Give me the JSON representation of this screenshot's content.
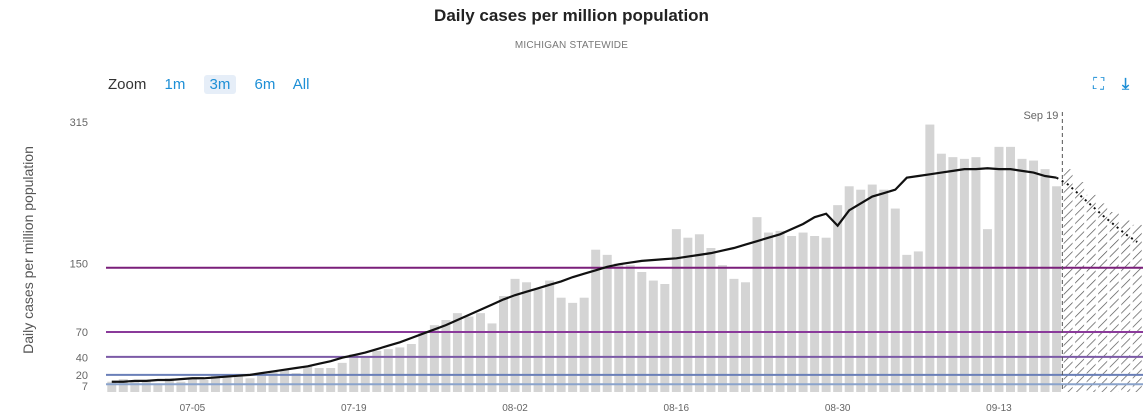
{
  "chart_data": {
    "type": "bar",
    "title": "Daily cases per million population",
    "subtitle": "MICHIGAN STATEWIDE",
    "ylabel": "Daily cases per million population",
    "ylim": [
      0,
      315
    ],
    "y_ticks": [
      "315",
      "150",
      "70",
      "40",
      "20",
      "7"
    ],
    "y_tick_values": [
      315,
      150,
      70,
      40,
      20,
      7
    ],
    "x_ticks": [
      "07-05",
      "07-19",
      "08-02",
      "08-16",
      "08-30",
      "09-13"
    ],
    "x_tick_positions": [
      7,
      21,
      35,
      49,
      63,
      77
    ],
    "marker_label": "Sep 19",
    "marker_index": 83,
    "threshold_lines": [
      {
        "value": 145,
        "color": "#7a1f7a"
      },
      {
        "value": 70,
        "color": "#8a3a9a"
      },
      {
        "value": 41,
        "color": "#7b5aa6"
      },
      {
        "value": 20,
        "color": "#6a7fb8"
      },
      {
        "value": 9,
        "color": "#8aa3cc"
      }
    ],
    "daily_values": [
      12,
      15,
      12,
      14,
      10,
      16,
      12,
      17,
      14,
      20,
      18,
      20,
      16,
      20,
      24,
      26,
      22,
      30,
      28,
      28,
      34,
      44,
      42,
      48,
      50,
      52,
      56,
      70,
      78,
      84,
      92,
      88,
      92,
      80,
      112,
      132,
      128,
      120,
      130,
      110,
      104,
      110,
      166,
      160,
      150,
      148,
      140,
      130,
      126,
      190,
      180,
      184,
      168,
      148,
      132,
      128,
      204,
      186,
      188,
      182,
      186,
      182,
      180,
      218,
      240,
      236,
      242,
      236,
      214,
      160,
      164,
      312,
      278,
      274,
      272,
      274,
      190,
      286,
      286,
      272,
      270,
      260,
      240
    ],
    "projected_values": [
      260,
      245,
      230,
      220,
      210,
      200,
      195
    ],
    "average_values": [
      12,
      12,
      13,
      13,
      14,
      14,
      15,
      16,
      16,
      17,
      18,
      19,
      20,
      22,
      24,
      26,
      28,
      30,
      33,
      36,
      40,
      43,
      46,
      50,
      54,
      58,
      63,
      68,
      73,
      78,
      84,
      90,
      96,
      102,
      108,
      113,
      117,
      121,
      125,
      129,
      134,
      138,
      142,
      146,
      149,
      151,
      153,
      154,
      155,
      156,
      158,
      160,
      162,
      165,
      168,
      172,
      176,
      180,
      184,
      190,
      196,
      204,
      208,
      194,
      212,
      220,
      228,
      232,
      236,
      250,
      252,
      254,
      256,
      258,
      260,
      260,
      261,
      260,
      260,
      258,
      256,
      252,
      250
    ],
    "projected_average": [
      242,
      230,
      218,
      206,
      195,
      184,
      175
    ]
  },
  "zoom": {
    "label": "Zoom",
    "options": [
      "1m",
      "3m",
      "6m",
      "All"
    ],
    "active": "3m"
  },
  "colors": {
    "bar": "#d4d4d4",
    "projected_hatch": "#555555",
    "average_line": "#111111",
    "accent": "#1d8fd6"
  },
  "icons": {
    "expand": "expand-icon",
    "download": "download-icon"
  }
}
